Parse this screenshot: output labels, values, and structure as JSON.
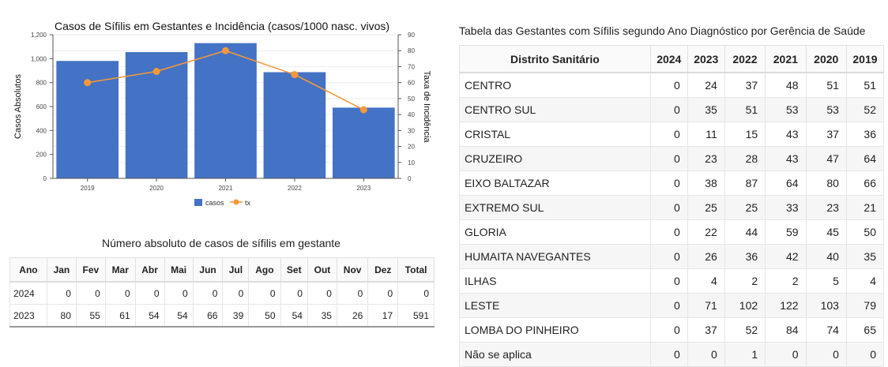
{
  "chart_data": {
    "type": "bar",
    "title": "Casos de Sífilis em Gestantes e Incidência (casos/1000 nasc. vivos)",
    "categories": [
      "2019",
      "2020",
      "2021",
      "2022",
      "2023"
    ],
    "series": [
      {
        "name": "casos",
        "type": "bar",
        "axis": "left",
        "color": "#4472c4",
        "values": [
          981,
          1055,
          1130,
          887,
          591
        ]
      },
      {
        "name": "tx",
        "type": "line",
        "axis": "right",
        "color": "#f4993a",
        "values": [
          60,
          67,
          80,
          65,
          43
        ]
      }
    ],
    "ylabel": "Casos Absolutos",
    "y2label": "Taxa de Incidência",
    "ylim": [
      0,
      1200
    ],
    "y2lim": [
      0,
      90
    ],
    "yticks": [
      "0",
      "200",
      "400",
      "600",
      "800",
      "1,000",
      "1,200"
    ],
    "y2ticks": [
      "0",
      "10",
      "20",
      "30",
      "40",
      "50",
      "60",
      "70",
      "80",
      "90"
    ],
    "grid": true,
    "legend": "bottom"
  },
  "monthly": {
    "title": "Número absoluto de casos de sífilis em gestante",
    "headers": [
      "Ano",
      "Jan",
      "Fev",
      "Mar",
      "Abr",
      "Mai",
      "Jun",
      "Jul",
      "Ago",
      "Set",
      "Out",
      "Nov",
      "Dez",
      "Total"
    ],
    "rows": [
      [
        "2024",
        "0",
        "0",
        "0",
        "0",
        "0",
        "0",
        "0",
        "0",
        "0",
        "0",
        "0",
        "0",
        "0"
      ],
      [
        "2023",
        "80",
        "55",
        "61",
        "54",
        "54",
        "66",
        "39",
        "50",
        "54",
        "35",
        "26",
        "17",
        "591"
      ]
    ]
  },
  "district": {
    "title": "Tabela das Gestantes com Sífilis segundo Ano Diagnóstico por Gerência de Saúde",
    "headers": [
      "Distrito Sanitário",
      "2024",
      "2023",
      "2022",
      "2021",
      "2020",
      "2019"
    ],
    "rows": [
      [
        "CENTRO",
        "0",
        "24",
        "37",
        "48",
        "51",
        "51"
      ],
      [
        "CENTRO SUL",
        "0",
        "35",
        "51",
        "53",
        "53",
        "52"
      ],
      [
        "CRISTAL",
        "0",
        "11",
        "15",
        "43",
        "37",
        "36"
      ],
      [
        "CRUZEIRO",
        "0",
        "23",
        "28",
        "43",
        "47",
        "64"
      ],
      [
        "EIXO BALTAZAR",
        "0",
        "38",
        "87",
        "64",
        "80",
        "66"
      ],
      [
        "EXTREMO SUL",
        "0",
        "25",
        "25",
        "33",
        "23",
        "21"
      ],
      [
        "GLORIA",
        "0",
        "22",
        "44",
        "59",
        "45",
        "50"
      ],
      [
        "HUMAITA NAVEGANTES",
        "0",
        "26",
        "36",
        "42",
        "40",
        "35"
      ],
      [
        "ILHAS",
        "0",
        "4",
        "2",
        "2",
        "5",
        "4"
      ],
      [
        "LESTE",
        "0",
        "71",
        "102",
        "122",
        "103",
        "79"
      ],
      [
        "LOMBA DO PINHEIRO",
        "0",
        "37",
        "52",
        "84",
        "74",
        "65"
      ],
      [
        "Não se aplica",
        "0",
        "0",
        "1",
        "0",
        "0",
        "0"
      ]
    ]
  }
}
